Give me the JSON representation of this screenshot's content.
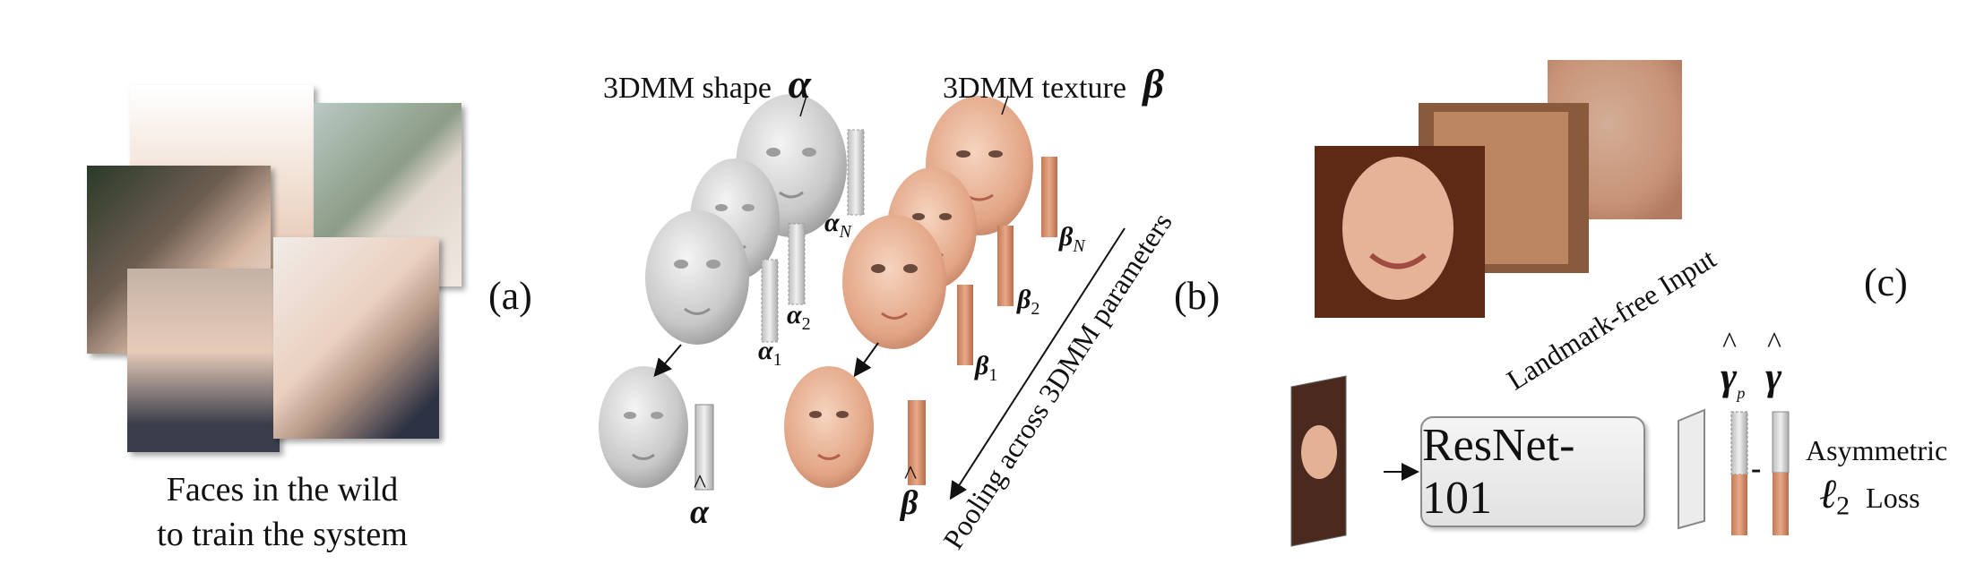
{
  "panel_a": {
    "letter": "(a)",
    "caption_line1": "Faces in the wild",
    "caption_line2": "to train the system"
  },
  "panel_b": {
    "letter": "(b)",
    "shape_label": "3DMM shape",
    "shape_symbol": "α",
    "texture_label": "3DMM texture",
    "texture_symbol": "β",
    "alpha_1": "α",
    "alpha_1_sub": "1",
    "alpha_2": "α",
    "alpha_2_sub": "2",
    "alpha_n": "α",
    "alpha_n_sub": "N",
    "beta_1": "β",
    "beta_1_sub": "1",
    "beta_2": "β",
    "beta_2_sub": "2",
    "beta_n": "β",
    "beta_n_sub": "N",
    "alpha_hat": "α",
    "beta_hat": "β",
    "pooling_label": "Pooling across 3DMM parameters"
  },
  "panel_c": {
    "letter": "(c)",
    "input_label": "Landmark-free Input",
    "network_label": "ResNet-101",
    "gamma_p": "γ",
    "gamma_p_sub": "p",
    "gamma": "γ",
    "minus": "-",
    "loss_line1": "Asymmetric",
    "loss_symbol": "ℓ",
    "loss_sub": "2",
    "loss_word": "Loss"
  },
  "colors": {
    "shape_gray": "#d2d2d2",
    "texture_orange": "#d9926e",
    "skin": "#e9b597"
  }
}
